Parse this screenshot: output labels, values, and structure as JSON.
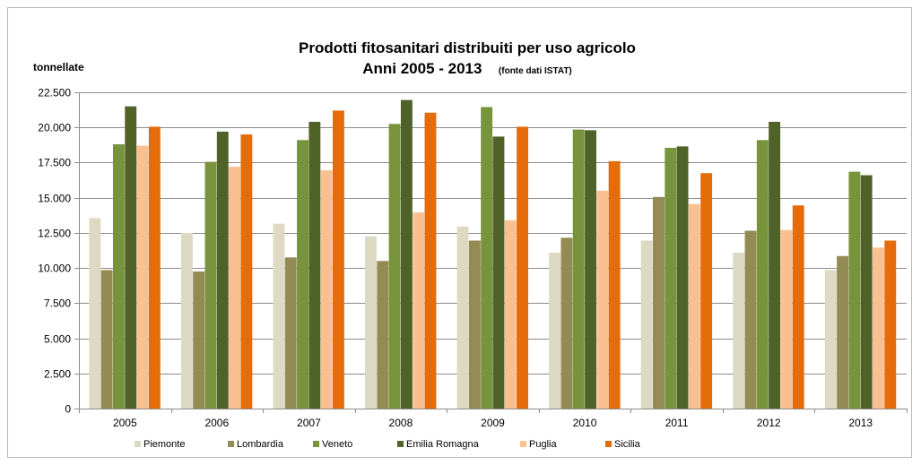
{
  "chart_data": {
    "type": "bar",
    "title": "Prodotti fitosanitari distribuiti per uso agricolo",
    "subtitle": "Anni 2005 - 2013",
    "source_note": "(fonte dati ISTAT)",
    "ylabel": "tonnellate",
    "xlabel": "",
    "ylim": [
      0,
      22500
    ],
    "y_ticks": [
      0,
      2500,
      5000,
      7500,
      10000,
      12500,
      15000,
      17500,
      20000,
      22500
    ],
    "y_tick_labels": [
      "0",
      "2.500",
      "5.000",
      "7.500",
      "10.000",
      "12.500",
      "15.000",
      "17.500",
      "20.000",
      "22.500"
    ],
    "grid": true,
    "legend_position": "bottom",
    "categories": [
      "2005",
      "2006",
      "2007",
      "2008",
      "2009",
      "2010",
      "2011",
      "2012",
      "2013"
    ],
    "series": [
      {
        "name": "Piemonte",
        "color": "#ddd9c3",
        "values": [
          13550,
          12500,
          13150,
          12250,
          12950,
          11100,
          11950,
          11100,
          9850
        ]
      },
      {
        "name": "Lombardia",
        "color": "#948a54",
        "values": [
          9850,
          9750,
          10750,
          10500,
          11950,
          12150,
          15050,
          12650,
          10850
        ]
      },
      {
        "name": "Veneto",
        "color": "#77933c",
        "values": [
          18800,
          17550,
          19100,
          20250,
          21450,
          19850,
          18550,
          19100,
          16850
        ]
      },
      {
        "name": "Emilia Romagna",
        "color": "#4f6228",
        "values": [
          21500,
          19700,
          20400,
          21950,
          19350,
          19800,
          18650,
          20400,
          16600
        ]
      },
      {
        "name": "Puglia",
        "color": "#fac090",
        "values": [
          18700,
          17200,
          16950,
          13950,
          13400,
          15500,
          14550,
          12700,
          11450
        ]
      },
      {
        "name": "Sicilia",
        "color": "#e46c0a",
        "values": [
          20050,
          19500,
          21200,
          21050,
          20050,
          17600,
          16750,
          14450,
          11950
        ]
      }
    ]
  }
}
